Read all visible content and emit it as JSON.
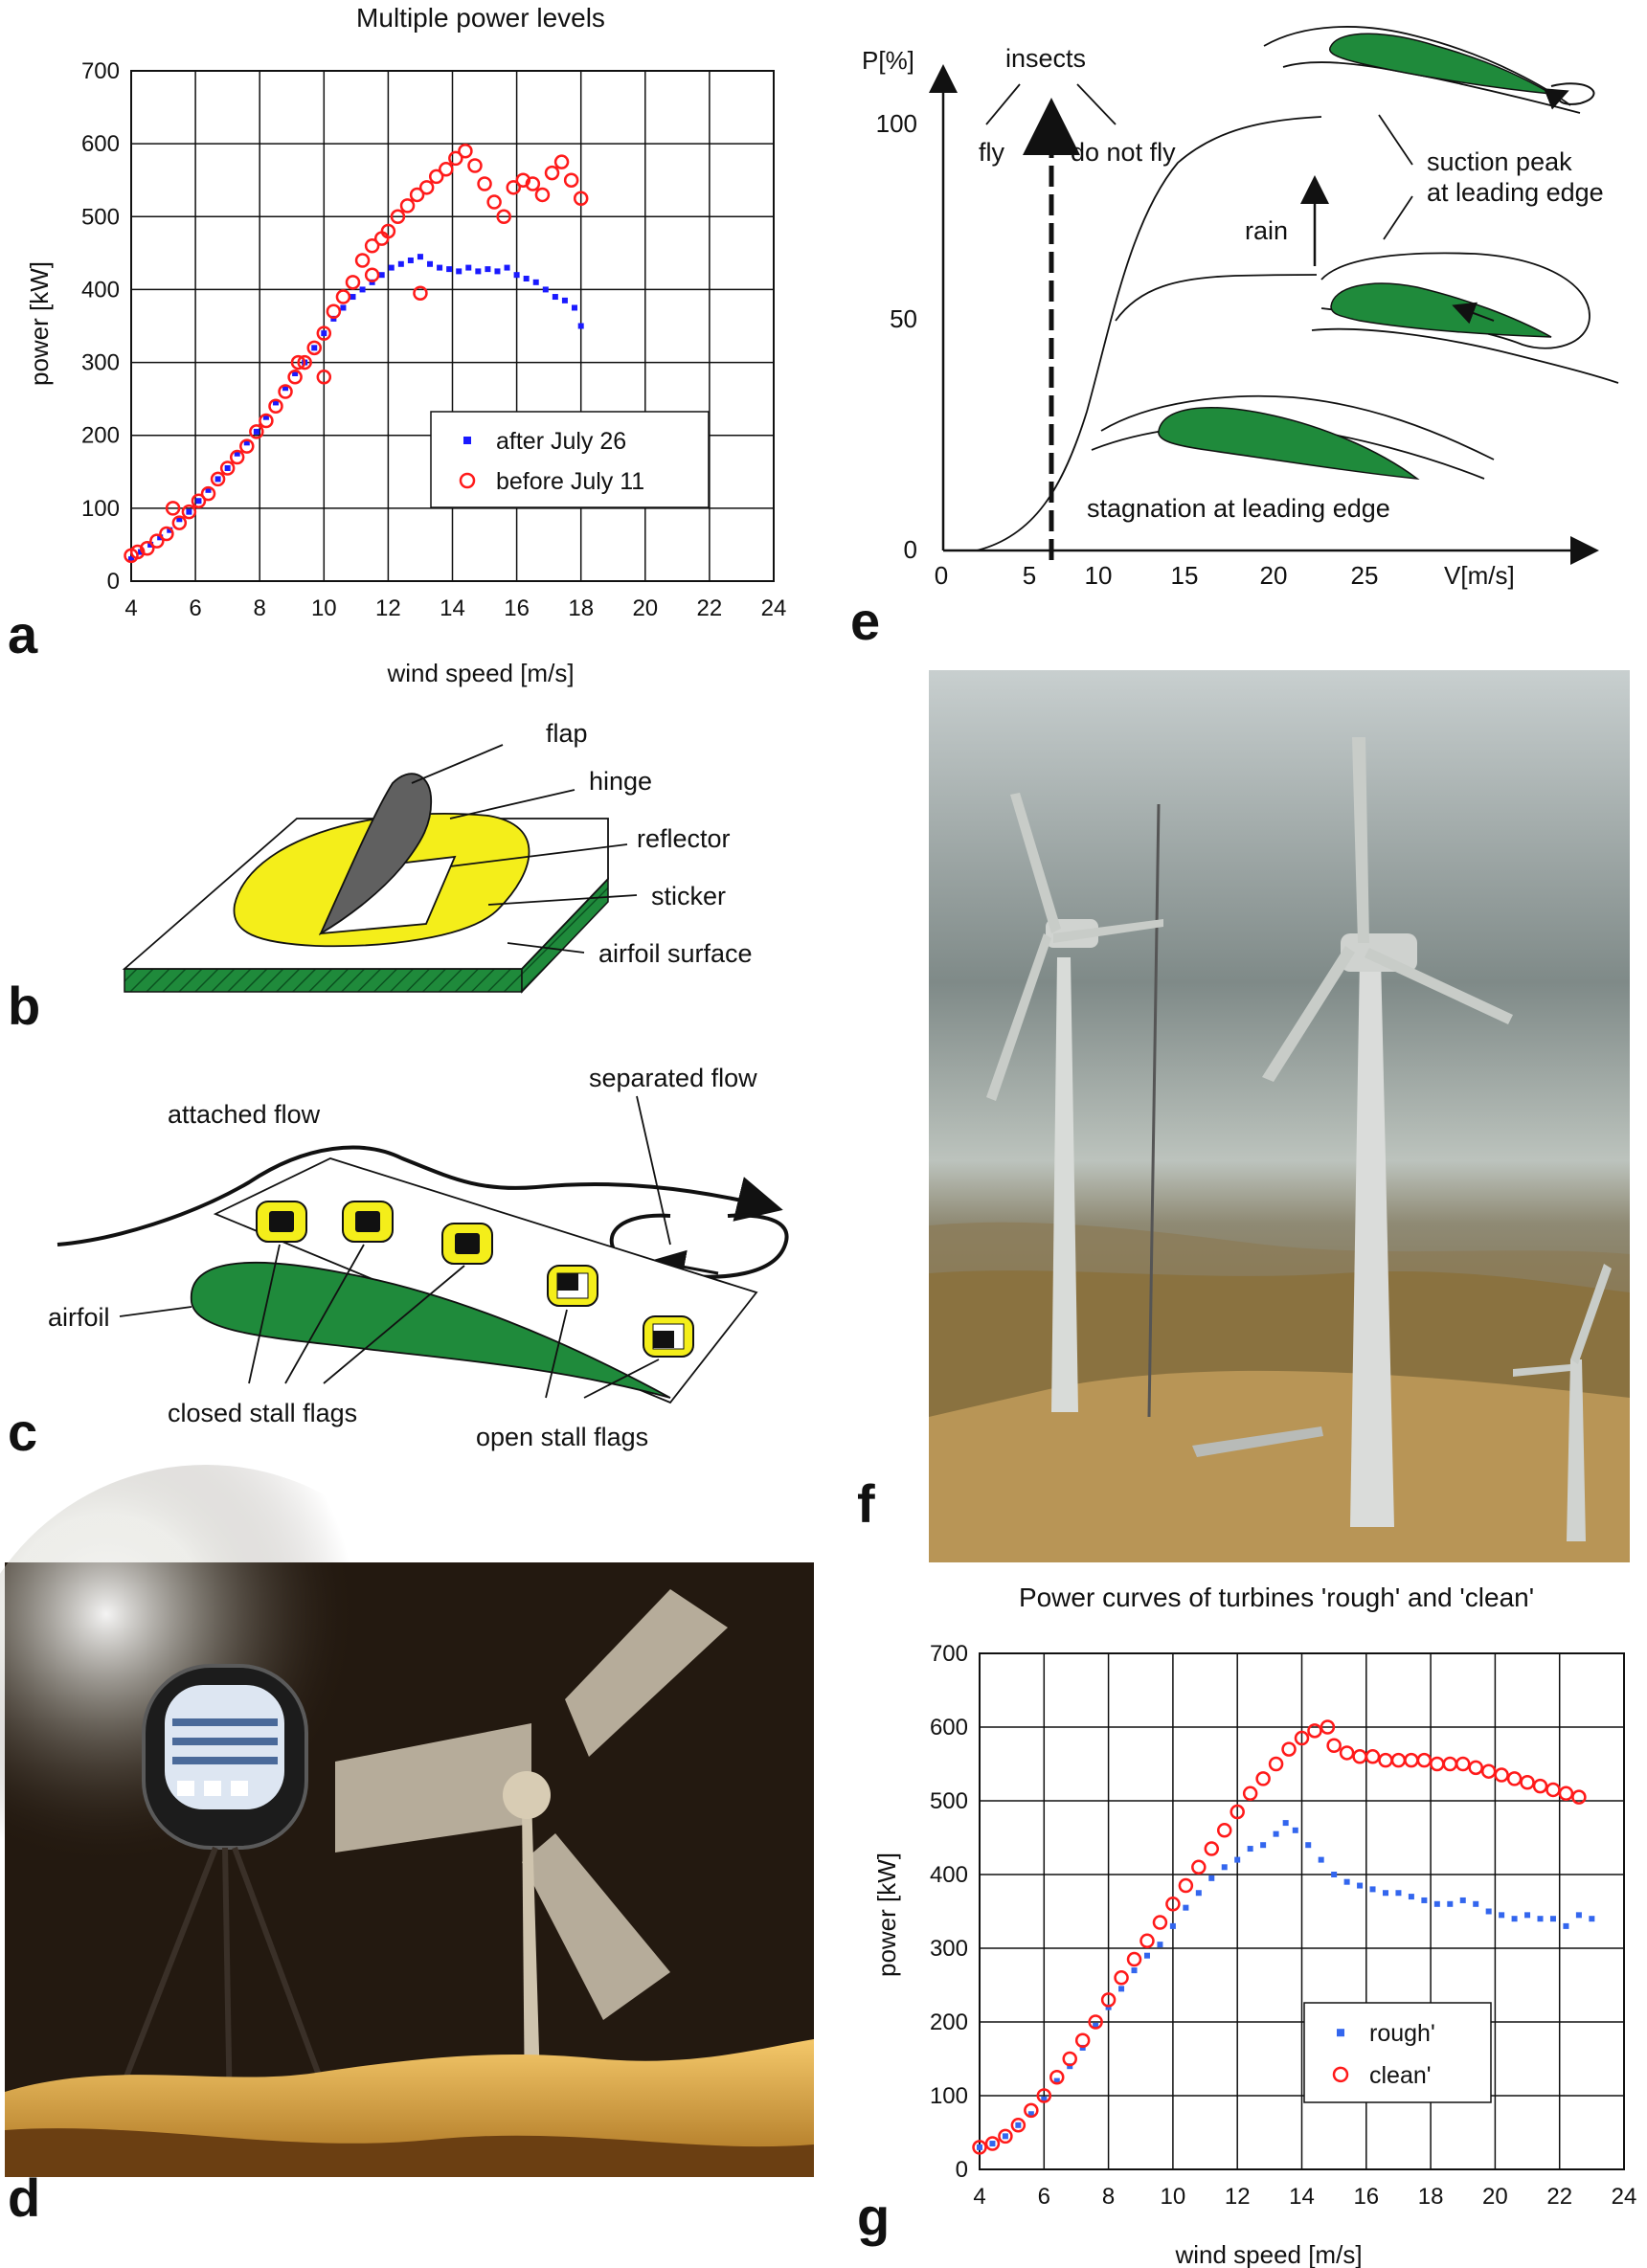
{
  "panels": {
    "a": "a",
    "b": "b",
    "c": "c",
    "d": "d",
    "e": "e",
    "f": "f",
    "g": "g"
  },
  "chart_data": [
    {
      "id": "a",
      "type": "scatter",
      "title": "Multiple power levels",
      "xlabel": "wind speed [m/s]",
      "ylabel": "power [kW]",
      "xlim": [
        4,
        24
      ],
      "ylim": [
        0,
        700
      ],
      "xticks": [
        4,
        6,
        8,
        10,
        12,
        14,
        16,
        18,
        20,
        22,
        24
      ],
      "yticks": [
        0,
        100,
        200,
        300,
        400,
        500,
        600,
        700
      ],
      "grid": true,
      "legend_position": "lower-right",
      "series": [
        {
          "name": "after July 26",
          "marker": "square",
          "color": "#1a1aff",
          "points": [
            [
              4.0,
              30
            ],
            [
              4.3,
              40
            ],
            [
              4.6,
              50
            ],
            [
              4.9,
              60
            ],
            [
              5.2,
              70
            ],
            [
              5.5,
              85
            ],
            [
              5.8,
              95
            ],
            [
              6.1,
              110
            ],
            [
              6.4,
              125
            ],
            [
              6.7,
              140
            ],
            [
              7.0,
              155
            ],
            [
              7.3,
              175
            ],
            [
              7.6,
              190
            ],
            [
              7.9,
              205
            ],
            [
              8.2,
              225
            ],
            [
              8.5,
              245
            ],
            [
              8.8,
              265
            ],
            [
              9.1,
              285
            ],
            [
              9.4,
              300
            ],
            [
              9.7,
              320
            ],
            [
              10.0,
              340
            ],
            [
              10.3,
              360
            ],
            [
              10.6,
              375
            ],
            [
              10.9,
              390
            ],
            [
              11.2,
              400
            ],
            [
              11.5,
              410
            ],
            [
              11.8,
              420
            ],
            [
              12.1,
              430
            ],
            [
              12.4,
              435
            ],
            [
              12.7,
              440
            ],
            [
              13.0,
              445
            ],
            [
              13.3,
              435
            ],
            [
              13.6,
              430
            ],
            [
              13.9,
              428
            ],
            [
              14.2,
              425
            ],
            [
              14.5,
              430
            ],
            [
              14.8,
              425
            ],
            [
              15.1,
              428
            ],
            [
              15.4,
              425
            ],
            [
              15.7,
              430
            ],
            [
              16.0,
              420
            ],
            [
              16.3,
              415
            ],
            [
              16.6,
              410
            ],
            [
              16.9,
              400
            ],
            [
              17.2,
              390
            ],
            [
              17.5,
              385
            ],
            [
              17.8,
              375
            ],
            [
              18.0,
              350
            ]
          ]
        },
        {
          "name": "before July 11",
          "marker": "circle",
          "color": "#ff1a1a",
          "points": [
            [
              4.0,
              35
            ],
            [
              4.2,
              40
            ],
            [
              4.5,
              45
            ],
            [
              4.8,
              55
            ],
            [
              5.1,
              65
            ],
            [
              5.3,
              100
            ],
            [
              5.5,
              80
            ],
            [
              5.8,
              95
            ],
            [
              6.1,
              110
            ],
            [
              6.4,
              120
            ],
            [
              6.7,
              140
            ],
            [
              7.0,
              155
            ],
            [
              7.3,
              170
            ],
            [
              7.6,
              185
            ],
            [
              7.9,
              205
            ],
            [
              8.2,
              220
            ],
            [
              8.5,
              240
            ],
            [
              8.8,
              260
            ],
            [
              9.1,
              280
            ],
            [
              9.4,
              300
            ],
            [
              9.7,
              320
            ],
            [
              10.0,
              340
            ],
            [
              10.3,
              370
            ],
            [
              10.6,
              390
            ],
            [
              10.9,
              410
            ],
            [
              11.2,
              440
            ],
            [
              11.5,
              460
            ],
            [
              11.8,
              470
            ],
            [
              12.0,
              480
            ],
            [
              12.3,
              500
            ],
            [
              12.6,
              515
            ],
            [
              12.9,
              530
            ],
            [
              13.2,
              540
            ],
            [
              13.5,
              555
            ],
            [
              13.8,
              565
            ],
            [
              14.1,
              580
            ],
            [
              14.4,
              590
            ],
            [
              14.7,
              570
            ],
            [
              15.0,
              545
            ],
            [
              15.3,
              520
            ],
            [
              15.6,
              500
            ],
            [
              15.9,
              540
            ],
            [
              16.2,
              550
            ],
            [
              16.5,
              545
            ],
            [
              16.8,
              530
            ],
            [
              17.1,
              560
            ],
            [
              17.4,
              575
            ],
            [
              17.7,
              550
            ],
            [
              18.0,
              525
            ],
            [
              13.0,
              395
            ],
            [
              10.0,
              280
            ],
            [
              9.2,
              300
            ],
            [
              11.5,
              420
            ]
          ]
        }
      ]
    },
    {
      "id": "g",
      "type": "scatter",
      "title": "Power curves of turbines 'rough' and  'clean'",
      "xlabel": "wind speed [m/s]",
      "ylabel": "power [kW]",
      "xlim": [
        4,
        24
      ],
      "ylim": [
        0,
        700
      ],
      "xticks": [
        4,
        6,
        8,
        10,
        12,
        14,
        16,
        18,
        20,
        22,
        24
      ],
      "yticks": [
        0,
        100,
        200,
        300,
        400,
        500,
        600,
        700
      ],
      "grid": true,
      "legend_position": "lower-right",
      "series": [
        {
          "name": "rough'",
          "marker": "square",
          "color": "#3366ee",
          "points": [
            [
              4.0,
              30
            ],
            [
              4.4,
              35
            ],
            [
              4.8,
              45
            ],
            [
              5.2,
              60
            ],
            [
              5.6,
              75
            ],
            [
              6.0,
              95
            ],
            [
              6.4,
              120
            ],
            [
              6.8,
              140
            ],
            [
              7.2,
              165
            ],
            [
              7.6,
              195
            ],
            [
              8.0,
              220
            ],
            [
              8.4,
              245
            ],
            [
              8.8,
              270
            ],
            [
              9.2,
              290
            ],
            [
              9.6,
              305
            ],
            [
              10.0,
              330
            ],
            [
              10.4,
              355
            ],
            [
              10.8,
              375
            ],
            [
              11.2,
              395
            ],
            [
              11.6,
              410
            ],
            [
              12.0,
              420
            ],
            [
              12.4,
              435
            ],
            [
              12.8,
              440
            ],
            [
              13.2,
              455
            ],
            [
              13.5,
              470
            ],
            [
              13.8,
              460
            ],
            [
              14.2,
              440
            ],
            [
              14.6,
              420
            ],
            [
              15.0,
              400
            ],
            [
              15.4,
              390
            ],
            [
              15.8,
              385
            ],
            [
              16.2,
              380
            ],
            [
              16.6,
              375
            ],
            [
              17.0,
              375
            ],
            [
              17.4,
              370
            ],
            [
              17.8,
              365
            ],
            [
              18.2,
              360
            ],
            [
              18.6,
              360
            ],
            [
              19.0,
              365
            ],
            [
              19.4,
              360
            ],
            [
              19.8,
              350
            ],
            [
              20.2,
              345
            ],
            [
              20.6,
              340
            ],
            [
              21.0,
              345
            ],
            [
              21.4,
              340
            ],
            [
              21.8,
              340
            ],
            [
              22.2,
              330
            ],
            [
              22.6,
              345
            ],
            [
              23.0,
              340
            ]
          ]
        },
        {
          "name": "clean'",
          "marker": "circle",
          "color": "#ff1a1a",
          "points": [
            [
              4.0,
              30
            ],
            [
              4.4,
              35
            ],
            [
              4.8,
              45
            ],
            [
              5.2,
              60
            ],
            [
              5.6,
              80
            ],
            [
              6.0,
              100
            ],
            [
              6.4,
              125
            ],
            [
              6.8,
              150
            ],
            [
              7.2,
              175
            ],
            [
              7.6,
              200
            ],
            [
              8.0,
              230
            ],
            [
              8.4,
              260
            ],
            [
              8.8,
              285
            ],
            [
              9.2,
              310
            ],
            [
              9.6,
              335
            ],
            [
              10.0,
              360
            ],
            [
              10.4,
              385
            ],
            [
              10.8,
              410
            ],
            [
              11.2,
              435
            ],
            [
              11.6,
              460
            ],
            [
              12.0,
              485
            ],
            [
              12.4,
              510
            ],
            [
              12.8,
              530
            ],
            [
              13.2,
              550
            ],
            [
              13.6,
              570
            ],
            [
              14.0,
              585
            ],
            [
              14.4,
              595
            ],
            [
              14.8,
              600
            ],
            [
              15.0,
              575
            ],
            [
              15.4,
              565
            ],
            [
              15.8,
              560
            ],
            [
              16.2,
              560
            ],
            [
              16.6,
              555
            ],
            [
              17.0,
              555
            ],
            [
              17.4,
              555
            ],
            [
              17.8,
              555
            ],
            [
              18.2,
              550
            ],
            [
              18.6,
              550
            ],
            [
              19.0,
              550
            ],
            [
              19.4,
              545
            ],
            [
              19.8,
              540
            ],
            [
              20.2,
              535
            ],
            [
              20.6,
              530
            ],
            [
              21.0,
              525
            ],
            [
              21.4,
              520
            ],
            [
              21.8,
              515
            ],
            [
              22.2,
              510
            ],
            [
              22.6,
              505
            ]
          ]
        }
      ]
    }
  ],
  "diagram_b": {
    "labels": {
      "flap": "flap",
      "hinge": "hinge",
      "reflector": "reflector",
      "sticker": "sticker",
      "surface": "airfoil surface"
    }
  },
  "diagram_c": {
    "labels": {
      "attached": "attached flow",
      "separated": "separated flow",
      "airfoil": "airfoil",
      "closed": "closed stall flags",
      "open": "open stall flags"
    }
  },
  "diagram_e": {
    "y_axis_label": "P[%]",
    "x_axis_label": "V[m/s]",
    "y_ticks": [
      "100",
      "50",
      "0"
    ],
    "x_ticks": [
      "0",
      "5",
      "10",
      "15",
      "20",
      "25"
    ],
    "labels": {
      "insects": "insects",
      "fly": "fly",
      "notfly": "do not fly",
      "rain": "rain",
      "suction1": "suction peak",
      "suction2": "at leading edge",
      "stagnation": "stagnation at leading edge"
    }
  },
  "colors": {
    "green": "#1f8a3b",
    "yellow": "#f4ee1a",
    "red": "#ff1a1a",
    "blue": "#1a1aff"
  }
}
